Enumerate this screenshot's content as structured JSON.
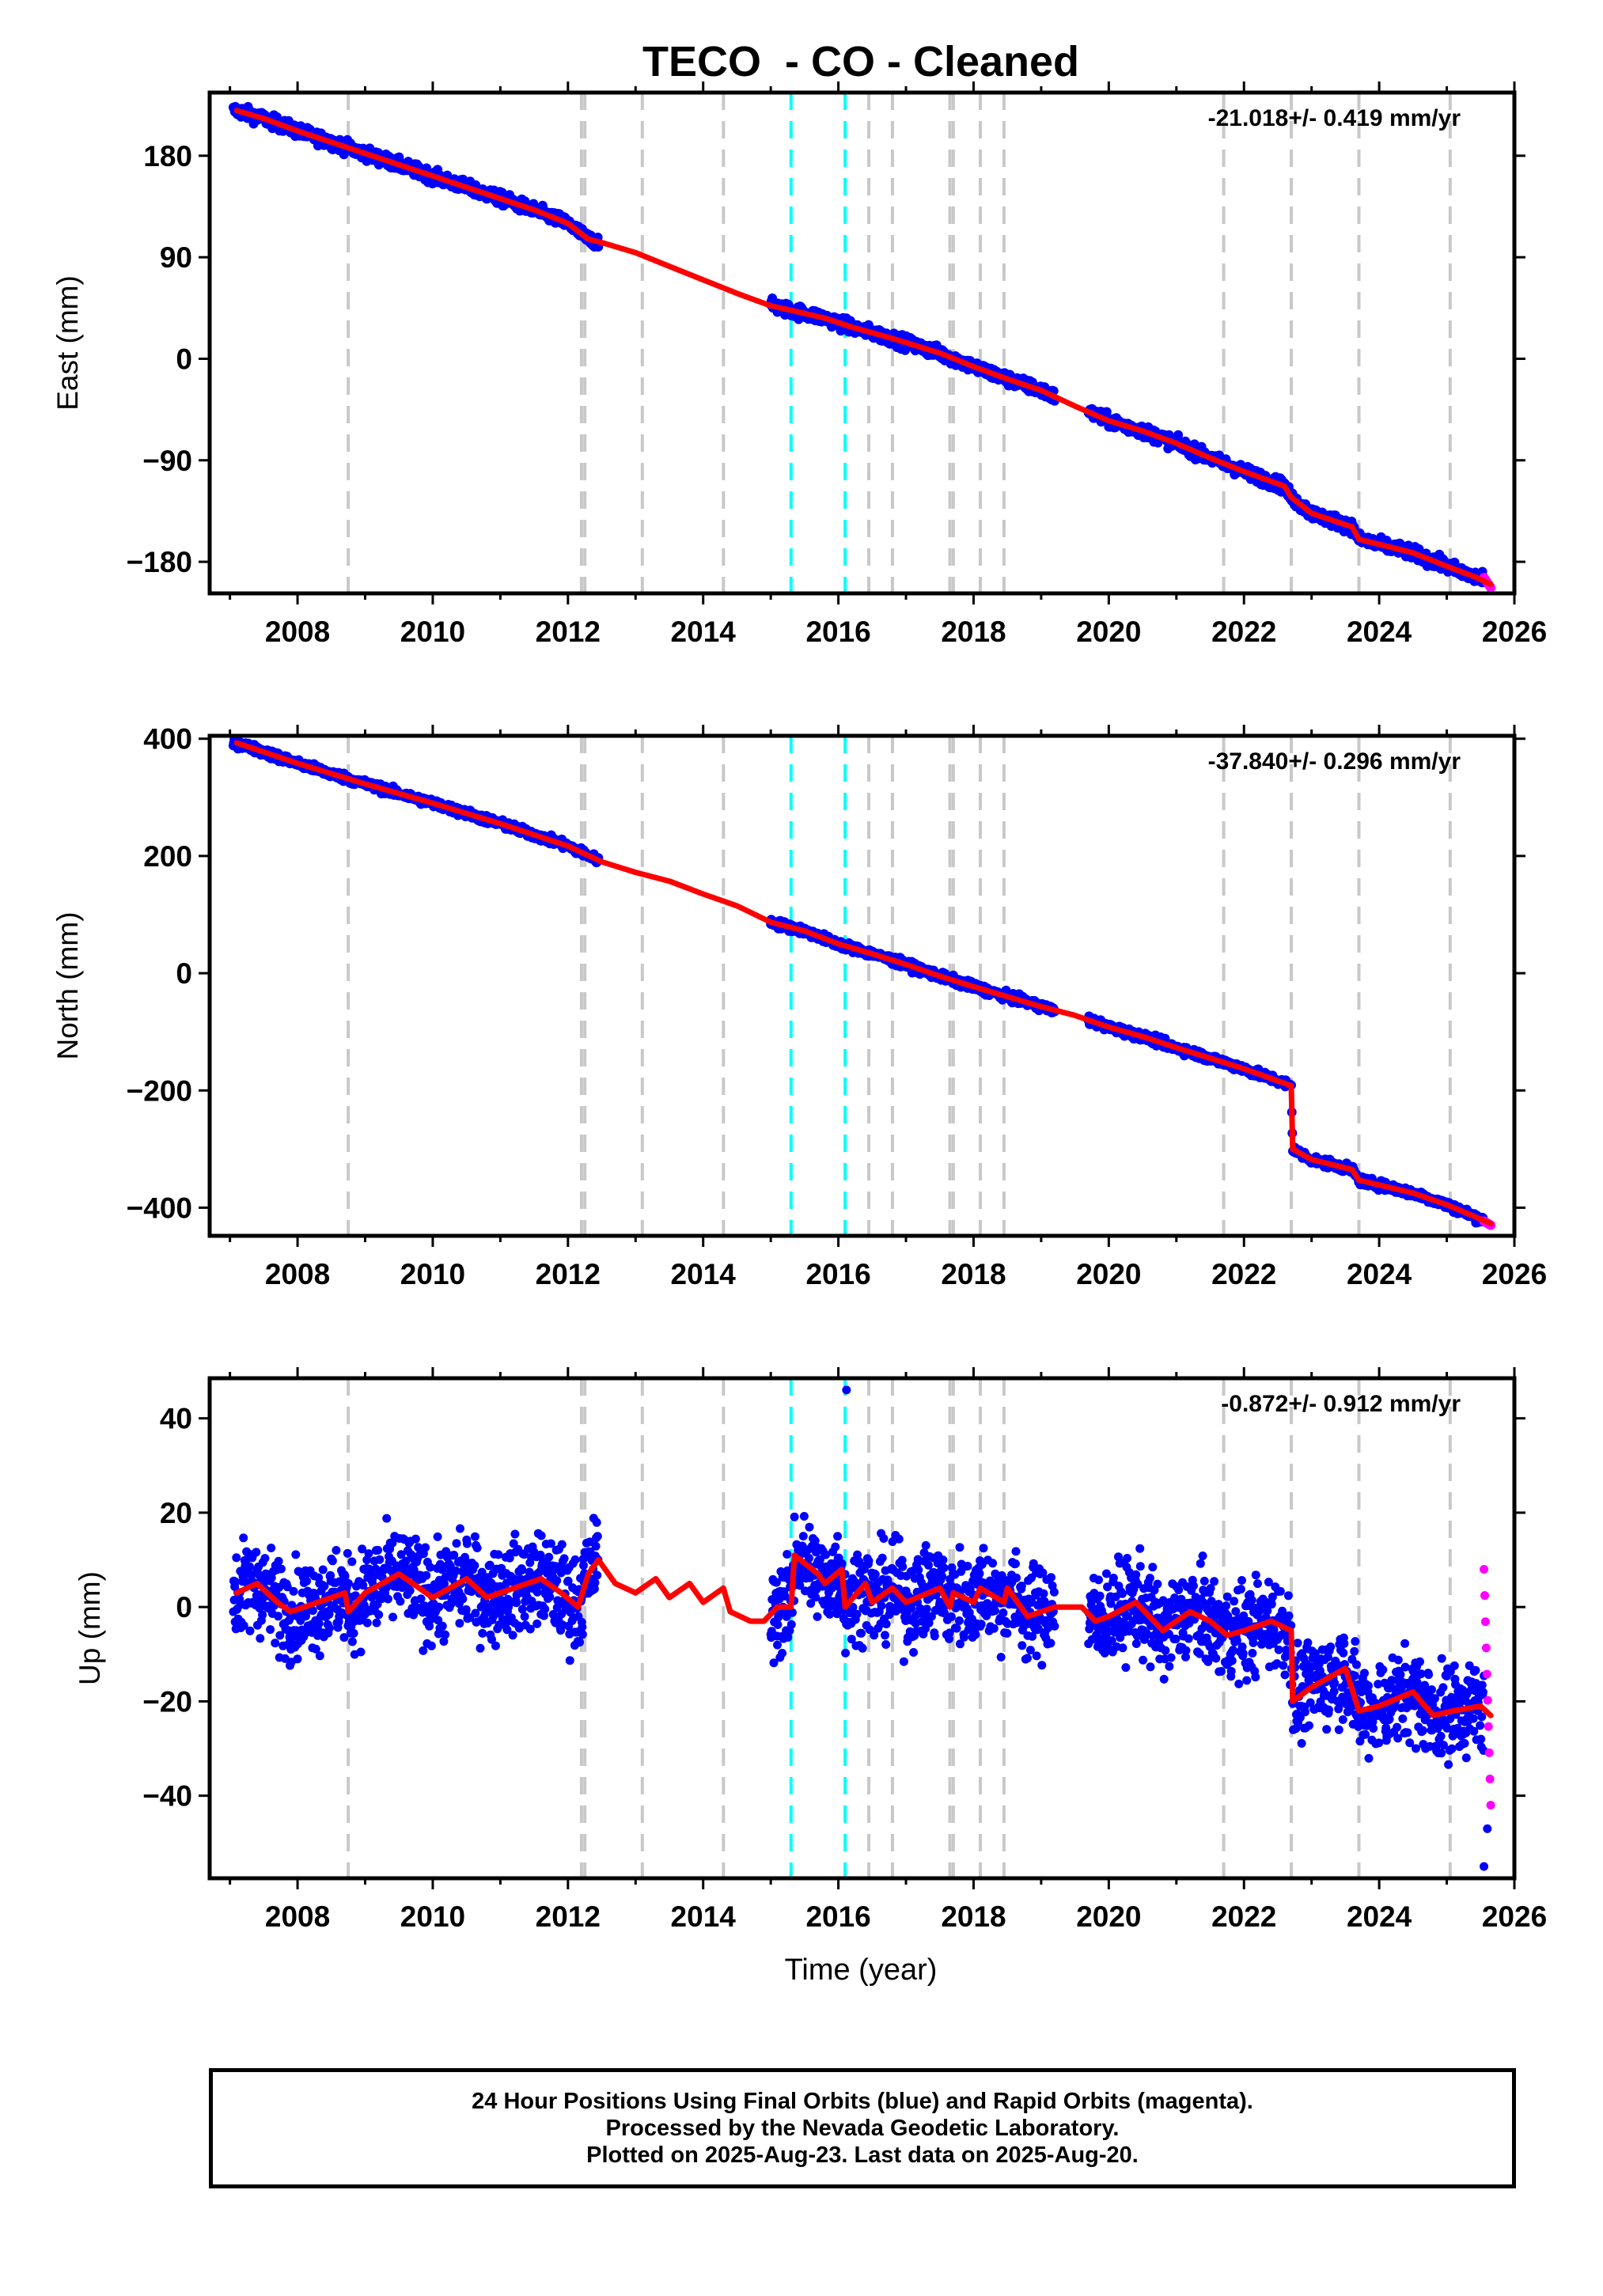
{
  "title": "TECO  - CO - Cleaned",
  "xlabel": "Time (year)",
  "footer": {
    "line1": "24 Hour Positions Using Final Orbits (blue) and Rapid Orbits (magenta).",
    "line2": "Processed by the Nevada Geodetic Laboratory.",
    "line3": "Plotted on 2025-Aug-23. Last data on 2025-Aug-20."
  },
  "colors": {
    "final": "#0000ff",
    "rapid": "#ff00ff",
    "model": "#ff0000",
    "gray_offset": "#c8c8c8",
    "cyan_offset": "#00ffff"
  },
  "chart_data": [
    {
      "type": "scatter",
      "name": "east",
      "ylabel": "East (mm)",
      "rate_label": "-21.018+/- 0.419 mm/yr",
      "xlim": [
        2006.7,
        2026.0
      ],
      "ylim": [
        -208,
        236
      ],
      "xticks": [
        2008,
        2010,
        2012,
        2014,
        2016,
        2018,
        2020,
        2022,
        2024,
        2026
      ],
      "yticks": [
        180,
        90,
        0,
        -90,
        -180
      ],
      "ytick_labels": [
        "180",
        "90",
        "0",
        "−90",
        "−180"
      ],
      "model": [
        [
          2007.1,
          220
        ],
        [
          2007.5,
          213
        ],
        [
          2008.0,
          202
        ],
        [
          2008.7,
          188
        ],
        [
          2009.5,
          172
        ],
        [
          2010.5,
          152
        ],
        [
          2011.5,
          132
        ],
        [
          2012.0,
          120
        ],
        [
          2012.3,
          106
        ],
        [
          2012.5,
          103
        ],
        [
          2013.0,
          94
        ],
        [
          2013.5,
          82
        ],
        [
          2014.0,
          70
        ],
        [
          2014.5,
          58
        ],
        [
          2015.0,
          47
        ],
        [
          2015.3,
          43
        ],
        [
          2015.8,
          36
        ],
        [
          2016.2,
          28
        ],
        [
          2016.8,
          18
        ],
        [
          2017.5,
          5
        ],
        [
          2018.0,
          -7
        ],
        [
          2018.5,
          -18
        ],
        [
          2019.0,
          -28
        ],
        [
          2019.5,
          -42
        ],
        [
          2020.0,
          -55
        ],
        [
          2020.5,
          -64
        ],
        [
          2021.0,
          -75
        ],
        [
          2021.5,
          -88
        ],
        [
          2022.0,
          -100
        ],
        [
          2022.6,
          -113
        ],
        [
          2022.7,
          -123
        ],
        [
          2023.0,
          -137
        ],
        [
          2023.6,
          -149
        ],
        [
          2023.7,
          -160
        ],
        [
          2024.5,
          -172
        ],
        [
          2025.0,
          -184
        ],
        [
          2025.4,
          -193
        ],
        [
          2025.65,
          -200
        ]
      ],
      "final_segments": [
        [
          2007.05,
          2012.45
        ],
        [
          2015.0,
          2019.2
        ],
        [
          2019.7,
          2025.55
        ]
      ],
      "rapid": {
        "x_start": 2025.55,
        "x_end": 2025.65,
        "y_start": -194,
        "y_end": -203
      },
      "noise_amplitude": 4,
      "outliers": [],
      "gray_offsets": [
        2008.75,
        2012.2,
        2012.25,
        2013.1,
        2014.3,
        2016.45,
        2016.8,
        2017.65,
        2017.7,
        2018.1,
        2018.45,
        2021.7,
        2022.7,
        2023.7,
        2025.05
      ],
      "cyan_offsets": [
        2015.3,
        2016.1
      ]
    },
    {
      "type": "scatter",
      "name": "north",
      "ylabel": "North (mm)",
      "rate_label": "-37.840+/- 0.296 mm/yr",
      "xlim": [
        2006.7,
        2026.0
      ],
      "ylim": [
        -448,
        405
      ],
      "xticks": [
        2008,
        2010,
        2012,
        2014,
        2016,
        2018,
        2020,
        2022,
        2024,
        2026
      ],
      "yticks": [
        400,
        200,
        0,
        -200,
        -400
      ],
      "ytick_labels": [
        "400",
        "200",
        "0",
        "−200",
        "−400"
      ],
      "model": [
        [
          2007.1,
          393
        ],
        [
          2008.0,
          358
        ],
        [
          2009.0,
          323
        ],
        [
          2010.0,
          290
        ],
        [
          2011.0,
          255
        ],
        [
          2012.0,
          217
        ],
        [
          2012.5,
          190
        ],
        [
          2013.0,
          172
        ],
        [
          2013.5,
          157
        ],
        [
          2014.0,
          135
        ],
        [
          2014.5,
          115
        ],
        [
          2015.0,
          87
        ],
        [
          2015.5,
          72
        ],
        [
          2016.0,
          50
        ],
        [
          2016.5,
          33
        ],
        [
          2017.0,
          15
        ],
        [
          2017.5,
          -5
        ],
        [
          2018.0,
          -23
        ],
        [
          2018.5,
          -40
        ],
        [
          2019.0,
          -57
        ],
        [
          2019.5,
          -72
        ],
        [
          2020.0,
          -92
        ],
        [
          2020.5,
          -108
        ],
        [
          2021.0,
          -127
        ],
        [
          2021.5,
          -145
        ],
        [
          2022.0,
          -163
        ],
        [
          2022.7,
          -192
        ],
        [
          2022.72,
          -300
        ],
        [
          2023.0,
          -318
        ],
        [
          2023.6,
          -335
        ],
        [
          2023.7,
          -353
        ],
        [
          2024.5,
          -375
        ],
        [
          2025.0,
          -395
        ],
        [
          2025.65,
          -427
        ]
      ],
      "final_segments": [
        [
          2007.05,
          2012.45
        ],
        [
          2015.0,
          2019.2
        ],
        [
          2019.7,
          2025.55
        ]
      ],
      "rapid": {
        "x_start": 2025.55,
        "x_end": 2025.65,
        "y_start": -423,
        "y_end": -430
      },
      "noise_amplitude": 5,
      "outliers": [],
      "gray_offsets": [
        2008.75,
        2012.2,
        2012.25,
        2013.1,
        2014.3,
        2016.45,
        2016.8,
        2017.65,
        2017.7,
        2018.1,
        2018.45,
        2021.7,
        2022.7,
        2023.7,
        2025.05
      ],
      "cyan_offsets": [
        2015.3,
        2016.1
      ]
    },
    {
      "type": "scatter",
      "name": "up",
      "ylabel": "Up (mm)",
      "rate_label": "-0.872+/- 0.912 mm/yr",
      "xlim": [
        2006.7,
        2026.0
      ],
      "ylim": [
        -57.5,
        48.5
      ],
      "xticks": [
        2008,
        2010,
        2012,
        2014,
        2016,
        2018,
        2020,
        2022,
        2024,
        2026
      ],
      "yticks": [
        40,
        20,
        0,
        -20,
        -40
      ],
      "ytick_labels": [
        "40",
        "20",
        "0",
        "−20",
        "−40"
      ],
      "model": [
        [
          2007.1,
          3
        ],
        [
          2007.4,
          5
        ],
        [
          2007.7,
          1
        ],
        [
          2007.9,
          -1
        ],
        [
          2008.3,
          1
        ],
        [
          2008.7,
          3
        ],
        [
          2008.75,
          -1
        ],
        [
          2009.0,
          3
        ],
        [
          2009.5,
          7
        ],
        [
          2009.8,
          4
        ],
        [
          2010.0,
          2
        ],
        [
          2010.5,
          6
        ],
        [
          2010.8,
          2
        ],
        [
          2011.2,
          4
        ],
        [
          2011.6,
          6
        ],
        [
          2011.9,
          3
        ],
        [
          2012.15,
          0
        ],
        [
          2012.3,
          7
        ],
        [
          2012.45,
          10
        ],
        [
          2012.7,
          5
        ],
        [
          2013.0,
          3
        ],
        [
          2013.3,
          6
        ],
        [
          2013.5,
          2
        ],
        [
          2013.8,
          5
        ],
        [
          2014.0,
          1
        ],
        [
          2014.3,
          4
        ],
        [
          2014.4,
          -1
        ],
        [
          2014.7,
          -3
        ],
        [
          2014.9,
          -3
        ],
        [
          2015.1,
          0
        ],
        [
          2015.3,
          0
        ],
        [
          2015.35,
          11
        ],
        [
          2015.7,
          7
        ],
        [
          2015.8,
          5
        ],
        [
          2016.05,
          8
        ],
        [
          2016.1,
          0
        ],
        [
          2016.4,
          5
        ],
        [
          2016.5,
          1
        ],
        [
          2016.8,
          4
        ],
        [
          2017.0,
          1
        ],
        [
          2017.5,
          4
        ],
        [
          2017.65,
          0
        ],
        [
          2017.7,
          3
        ],
        [
          2018.0,
          1
        ],
        [
          2018.1,
          4
        ],
        [
          2018.45,
          1
        ],
        [
          2018.5,
          4
        ],
        [
          2018.8,
          -2
        ],
        [
          2019.2,
          0
        ],
        [
          2019.6,
          0
        ],
        [
          2019.8,
          -3
        ],
        [
          2020.0,
          -2
        ],
        [
          2020.4,
          1
        ],
        [
          2020.8,
          -5
        ],
        [
          2021.2,
          -1
        ],
        [
          2021.5,
          -3
        ],
        [
          2021.75,
          -6
        ],
        [
          2022.0,
          -5
        ],
        [
          2022.4,
          -3
        ],
        [
          2022.7,
          -5
        ],
        [
          2022.72,
          -20
        ],
        [
          2023.0,
          -17
        ],
        [
          2023.5,
          -13
        ],
        [
          2023.7,
          -22
        ],
        [
          2024.0,
          -21
        ],
        [
          2024.5,
          -18
        ],
        [
          2024.8,
          -23
        ],
        [
          2025.1,
          -22
        ],
        [
          2025.5,
          -21
        ],
        [
          2025.65,
          -23
        ]
      ],
      "final_segments": [
        [
          2007.05,
          2012.45
        ],
        [
          2015.0,
          2019.2
        ],
        [
          2019.7,
          2025.55
        ]
      ],
      "rapid": {
        "x_start": 2025.55,
        "x_end": 2025.65,
        "y_start": 8,
        "y_end": -42
      },
      "noise_amplitude": 7,
      "outliers": [
        [
          2016.12,
          46
        ],
        [
          2025.55,
          -55
        ],
        [
          2025.6,
          -47
        ]
      ],
      "gray_offsets": [
        2008.75,
        2012.2,
        2012.25,
        2013.1,
        2014.3,
        2016.45,
        2016.8,
        2017.65,
        2017.7,
        2018.1,
        2018.45,
        2021.7,
        2022.7,
        2023.7,
        2025.05
      ],
      "cyan_offsets": [
        2015.3,
        2016.1
      ]
    }
  ]
}
